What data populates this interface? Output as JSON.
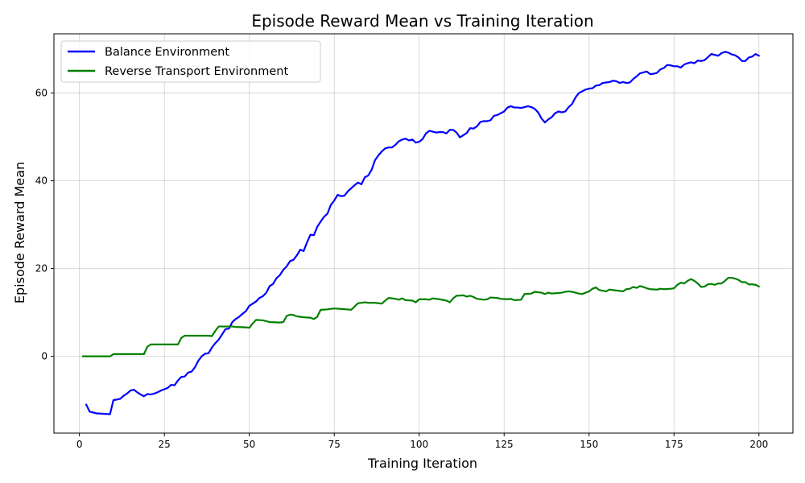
{
  "chart_data": {
    "type": "line",
    "title": "Episode Reward Mean vs Training Iteration",
    "xlabel": "Training Iteration",
    "ylabel": "Episode Reward Mean",
    "xlim": [
      -7.5,
      210
    ],
    "ylim": [
      -17.5,
      73.5
    ],
    "xticks": [
      0,
      25,
      50,
      75,
      100,
      125,
      150,
      175,
      200
    ],
    "yticks": [
      0,
      20,
      40,
      60
    ],
    "grid": true,
    "legend_position": "top-left",
    "series": [
      {
        "name": "Balance Environment",
        "color": "#0000ff",
        "points": [
          [
            2,
            -11
          ],
          [
            3,
            -12.6
          ],
          [
            5,
            -13
          ],
          [
            7,
            -13.1
          ],
          [
            9,
            -13.2
          ],
          [
            10,
            -10
          ],
          [
            12,
            -9.7
          ],
          [
            13,
            -9
          ],
          [
            14,
            -8.5
          ],
          [
            15,
            -7.8
          ],
          [
            16,
            -7.6
          ],
          [
            17,
            -8.2
          ],
          [
            18,
            -8.7
          ],
          [
            19,
            -9.1
          ],
          [
            20,
            -8.6
          ],
          [
            21,
            -8.7
          ],
          [
            22,
            -8.5
          ],
          [
            23,
            -8.2
          ],
          [
            24,
            -7.8
          ],
          [
            26,
            -7.2
          ],
          [
            27,
            -6.5
          ],
          [
            28,
            -6.6
          ],
          [
            29,
            -5.5
          ],
          [
            30,
            -4.7
          ],
          [
            31,
            -4.6
          ],
          [
            32,
            -3.7
          ],
          [
            33,
            -3.5
          ],
          [
            34,
            -2.5
          ],
          [
            35,
            -1
          ],
          [
            36,
            0
          ],
          [
            37,
            0.6
          ],
          [
            38,
            0.7
          ],
          [
            39,
            2
          ],
          [
            40,
            3
          ],
          [
            41,
            3.8
          ],
          [
            42,
            5
          ],
          [
            43,
            6.2
          ],
          [
            44,
            6.3
          ],
          [
            45,
            7.8
          ],
          [
            46,
            8.5
          ],
          [
            47,
            9
          ],
          [
            48,
            9.7
          ],
          [
            49,
            10.3
          ],
          [
            50,
            11.5
          ],
          [
            51,
            12
          ],
          [
            52,
            12.5
          ],
          [
            53,
            13.3
          ],
          [
            54,
            13.7
          ],
          [
            55,
            14.5
          ],
          [
            56,
            16
          ],
          [
            57,
            16.5
          ],
          [
            58,
            17.8
          ],
          [
            59,
            18.5
          ],
          [
            60,
            19.7
          ],
          [
            61,
            20.5
          ],
          [
            62,
            21.7
          ],
          [
            63,
            22
          ],
          [
            64,
            23
          ],
          [
            65,
            24.3
          ],
          [
            66,
            24
          ],
          [
            67,
            26
          ],
          [
            68,
            27.7
          ],
          [
            69,
            27.6
          ],
          [
            70,
            29.5
          ],
          [
            71,
            30.7
          ],
          [
            72,
            31.8
          ],
          [
            73,
            32.5
          ],
          [
            74,
            34.5
          ],
          [
            75,
            35.5
          ],
          [
            76,
            36.8
          ],
          [
            77,
            36.5
          ],
          [
            78,
            36.6
          ],
          [
            79,
            37.6
          ],
          [
            80,
            38.3
          ],
          [
            81,
            39
          ],
          [
            82,
            39.6
          ],
          [
            83,
            39.2
          ],
          [
            84,
            40.8
          ],
          [
            85,
            41.2
          ],
          [
            86,
            42.5
          ],
          [
            87,
            44.7
          ],
          [
            88,
            45.8
          ],
          [
            89,
            46.7
          ],
          [
            90,
            47.4
          ],
          [
            91,
            47.6
          ],
          [
            92,
            47.6
          ],
          [
            93,
            48.2
          ],
          [
            94,
            49
          ],
          [
            95,
            49.4
          ],
          [
            96,
            49.6
          ],
          [
            97,
            49.2
          ],
          [
            98,
            49.4
          ],
          [
            99,
            48.7
          ],
          [
            100,
            48.9
          ],
          [
            101,
            49.5
          ],
          [
            102,
            50.8
          ],
          [
            103,
            51.4
          ],
          [
            104,
            51.2
          ],
          [
            105,
            51
          ],
          [
            106,
            51.1
          ],
          [
            107,
            51.1
          ],
          [
            108,
            50.8
          ],
          [
            109,
            51.6
          ],
          [
            110,
            51.6
          ],
          [
            111,
            51
          ],
          [
            112,
            49.9
          ],
          [
            113,
            50.4
          ],
          [
            114,
            50.9
          ],
          [
            115,
            52
          ],
          [
            116,
            51.9
          ],
          [
            117,
            52.4
          ],
          [
            118,
            53.4
          ],
          [
            119,
            53.6
          ],
          [
            120,
            53.6
          ],
          [
            121,
            53.8
          ],
          [
            122,
            54.8
          ],
          [
            123,
            55
          ],
          [
            124,
            55.4
          ],
          [
            125,
            55.8
          ],
          [
            126,
            56.7
          ],
          [
            127,
            57
          ],
          [
            128,
            56.7
          ],
          [
            129,
            56.7
          ],
          [
            130,
            56.6
          ],
          [
            131,
            56.8
          ],
          [
            132,
            57
          ],
          [
            133,
            56.8
          ],
          [
            134,
            56.4
          ],
          [
            135,
            55.6
          ],
          [
            136,
            54.2
          ],
          [
            137,
            53.3
          ],
          [
            138,
            54
          ],
          [
            139,
            54.5
          ],
          [
            140,
            55.4
          ],
          [
            141,
            55.8
          ],
          [
            142,
            55.6
          ],
          [
            143,
            55.8
          ],
          [
            144,
            56.8
          ],
          [
            145,
            57.5
          ],
          [
            146,
            59
          ],
          [
            147,
            60
          ],
          [
            148,
            60.4
          ],
          [
            149,
            60.8
          ],
          [
            150,
            61
          ],
          [
            151,
            61.1
          ],
          [
            152,
            61.7
          ],
          [
            153,
            61.8
          ],
          [
            154,
            62.3
          ],
          [
            155,
            62.4
          ],
          [
            156,
            62.5
          ],
          [
            157,
            62.8
          ],
          [
            158,
            62.7
          ],
          [
            159,
            62.3
          ],
          [
            160,
            62.5
          ],
          [
            161,
            62.3
          ],
          [
            162,
            62.4
          ],
          [
            163,
            63.2
          ],
          [
            164,
            63.8
          ],
          [
            165,
            64.5
          ],
          [
            166,
            64.7
          ],
          [
            167,
            64.9
          ],
          [
            168,
            64.3
          ],
          [
            169,
            64.4
          ],
          [
            170,
            64.6
          ],
          [
            171,
            65.4
          ],
          [
            172,
            65.7
          ],
          [
            173,
            66.4
          ],
          [
            174,
            66.3
          ],
          [
            175,
            66.1
          ],
          [
            176,
            66.1
          ],
          [
            177,
            65.8
          ],
          [
            178,
            66.5
          ],
          [
            179,
            66.8
          ],
          [
            180,
            67
          ],
          [
            181,
            66.8
          ],
          [
            182,
            67.4
          ],
          [
            183,
            67.3
          ],
          [
            184,
            67.5
          ],
          [
            185,
            68.2
          ],
          [
            186,
            68.9
          ],
          [
            187,
            68.7
          ],
          [
            188,
            68.5
          ],
          [
            189,
            69.1
          ],
          [
            190,
            69.4
          ],
          [
            191,
            69.2
          ],
          [
            192,
            68.8
          ],
          [
            193,
            68.6
          ],
          [
            194,
            68.1
          ],
          [
            195,
            67.3
          ],
          [
            196,
            67.3
          ],
          [
            197,
            68.1
          ],
          [
            198,
            68.3
          ],
          [
            199,
            68.9
          ],
          [
            200,
            68.5
          ]
        ]
      },
      {
        "name": "Reverse Transport Environment",
        "color": "#008000",
        "points": [
          [
            1,
            0
          ],
          [
            9,
            0
          ],
          [
            10,
            0.5
          ],
          [
            19,
            0.5
          ],
          [
            20,
            2.2
          ],
          [
            21,
            2.7
          ],
          [
            29,
            2.7
          ],
          [
            30,
            4.2
          ],
          [
            31,
            4.7
          ],
          [
            38,
            4.7
          ],
          [
            39,
            4.6
          ],
          [
            40,
            5.8
          ],
          [
            41,
            6.8
          ],
          [
            45,
            6.8
          ],
          [
            46,
            6.7
          ],
          [
            49,
            6.6
          ],
          [
            50,
            6.5
          ],
          [
            51,
            7.5
          ],
          [
            52,
            8.3
          ],
          [
            54,
            8.2
          ],
          [
            56,
            7.8
          ],
          [
            59,
            7.7
          ],
          [
            60,
            7.8
          ],
          [
            61,
            9.2
          ],
          [
            62,
            9.5
          ],
          [
            63,
            9.4
          ],
          [
            64,
            9.1
          ],
          [
            66,
            8.9
          ],
          [
            68,
            8.8
          ],
          [
            69,
            8.5
          ],
          [
            70,
            9
          ],
          [
            71,
            10.6
          ],
          [
            73,
            10.7
          ],
          [
            75,
            10.9
          ],
          [
            77,
            10.8
          ],
          [
            80,
            10.6
          ],
          [
            82,
            12.1
          ],
          [
            84,
            12.3
          ],
          [
            85,
            12.2
          ],
          [
            87,
            12.2
          ],
          [
            89,
            12
          ],
          [
            90,
            12.7
          ],
          [
            91,
            13.3
          ],
          [
            93,
            13.1
          ],
          [
            94,
            12.9
          ],
          [
            95,
            13.2
          ],
          [
            96,
            12.8
          ],
          [
            98,
            12.7
          ],
          [
            99,
            12.3
          ],
          [
            100,
            13
          ],
          [
            102,
            13
          ],
          [
            103,
            12.9
          ],
          [
            104,
            13.2
          ],
          [
            106,
            13
          ],
          [
            108,
            12.7
          ],
          [
            109,
            12.3
          ],
          [
            110,
            13.2
          ],
          [
            111,
            13.8
          ],
          [
            113,
            13.9
          ],
          [
            114,
            13.6
          ],
          [
            115,
            13.8
          ],
          [
            116,
            13.5
          ],
          [
            117,
            13.1
          ],
          [
            119,
            12.9
          ],
          [
            120,
            13
          ],
          [
            121,
            13.4
          ],
          [
            123,
            13.3
          ],
          [
            124,
            13.1
          ],
          [
            126,
            13
          ],
          [
            127,
            13.1
          ],
          [
            128,
            12.8
          ],
          [
            130,
            12.9
          ],
          [
            131,
            14.2
          ],
          [
            133,
            14.3
          ],
          [
            134,
            14.7
          ],
          [
            136,
            14.5
          ],
          [
            137,
            14.2
          ],
          [
            138,
            14.5
          ],
          [
            139,
            14.3
          ],
          [
            142,
            14.5
          ],
          [
            143,
            14.7
          ],
          [
            144,
            14.8
          ],
          [
            145,
            14.7
          ],
          [
            147,
            14.3
          ],
          [
            148,
            14.2
          ],
          [
            150,
            14.8
          ],
          [
            151,
            15.4
          ],
          [
            152,
            15.7
          ],
          [
            153,
            15.1
          ],
          [
            155,
            14.8
          ],
          [
            156,
            15.2
          ],
          [
            158,
            15
          ],
          [
            159,
            14.9
          ],
          [
            160,
            14.8
          ],
          [
            161,
            15.3
          ],
          [
            162,
            15.4
          ],
          [
            163,
            15.8
          ],
          [
            164,
            15.6
          ],
          [
            165,
            16
          ],
          [
            166,
            15.8
          ],
          [
            167,
            15.5
          ],
          [
            168,
            15.3
          ],
          [
            170,
            15.2
          ],
          [
            171,
            15.4
          ],
          [
            172,
            15.3
          ],
          [
            174,
            15.4
          ],
          [
            175,
            15.5
          ],
          [
            176,
            16.3
          ],
          [
            177,
            16.8
          ],
          [
            178,
            16.6
          ],
          [
            179,
            17.2
          ],
          [
            180,
            17.6
          ],
          [
            181,
            17.2
          ],
          [
            182,
            16.6
          ],
          [
            183,
            15.8
          ],
          [
            184,
            15.9
          ],
          [
            185,
            16.4
          ],
          [
            186,
            16.5
          ],
          [
            187,
            16.3
          ],
          [
            188,
            16.6
          ],
          [
            189,
            16.6
          ],
          [
            190,
            17.2
          ],
          [
            191,
            17.9
          ],
          [
            192,
            17.9
          ],
          [
            193,
            17.7
          ],
          [
            194,
            17.4
          ],
          [
            195,
            16.9
          ],
          [
            196,
            16.9
          ],
          [
            197,
            16.4
          ],
          [
            198,
            16.4
          ],
          [
            199,
            16.3
          ],
          [
            200,
            15.9
          ]
        ]
      }
    ]
  }
}
